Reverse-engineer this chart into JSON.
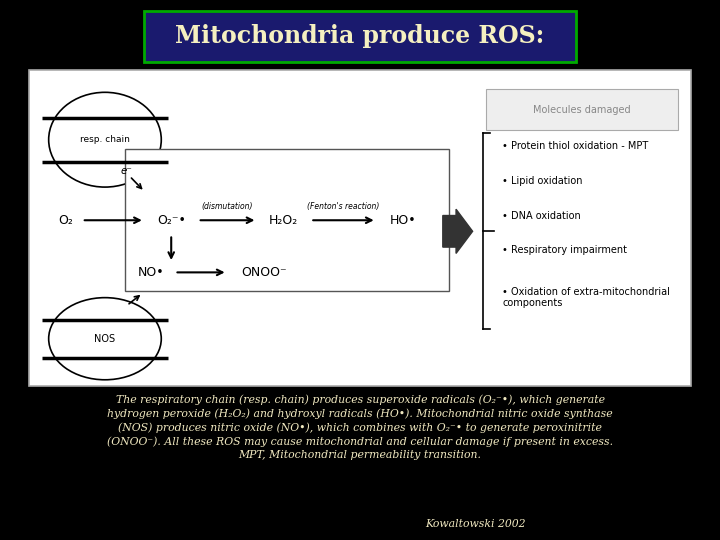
{
  "title": "Mitochondria produce ROS:",
  "title_bg": "#1a1a6e",
  "title_color": "#f5f0c0",
  "title_border": "#00aa00",
  "bg_color": "#000000",
  "image_bg": "#ffffff",
  "body_text_lines": [
    "The respiratory chain (resp. chain) produces superoxide radicals (O₂⁻•), which generate",
    "hydrogen peroxide (H₂O₂) and hydroxyl radicals (HO•). Mitochondrial nitric oxide synthase",
    "(NOS) produces nitric oxide (NO•), which combines with O₂⁻• to generate peroxinitrite",
    "(ONOO⁻). All these ROS may cause mitochondrial and cellular damage if present in excess.",
    "MPT, Mitochondrial permeability transition."
  ],
  "credit_text": "Kowaltowski 2002",
  "molecules_damaged_label": "Molecules damaged",
  "bullet_points": [
    "Protein thiol oxidation - MPT",
    "Lipid oxidation",
    "DNA oxidation",
    "Respiratory impairment",
    "Oxidation of extra-mitochondrial\ncomponents"
  ]
}
